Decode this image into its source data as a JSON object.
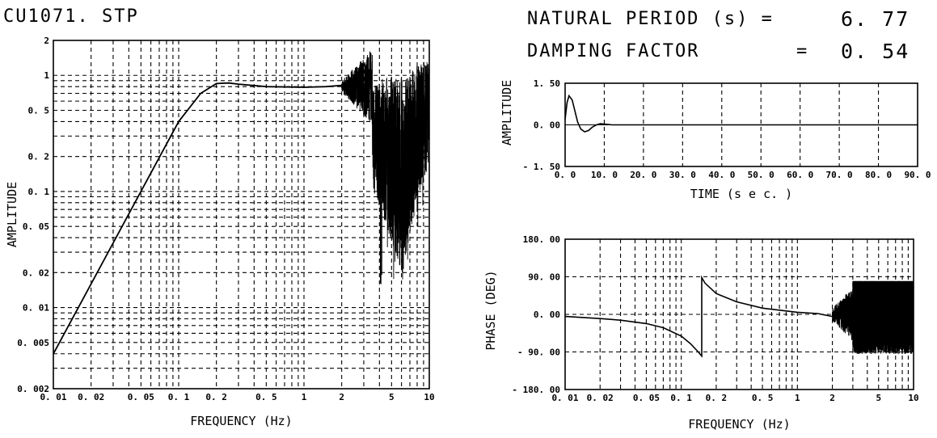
{
  "filename": "CU1071. STP",
  "header": {
    "natural_period_label": "NATURAL  PERIOD (s) =",
    "natural_period_value": "6. 77",
    "damping_label": "DAMPING  FACTOR",
    "damping_eq": "=",
    "damping_value": "0. 54"
  },
  "chart_data": [
    {
      "type": "line",
      "id": "amplitude-spectrum",
      "xlabel": "FREQUENCY (Hz)",
      "ylabel": "AMPLITUDE",
      "xscale": "log",
      "yscale": "log",
      "xlim": [
        0.01,
        10
      ],
      "ylim": [
        0.002,
        2
      ],
      "x_ticks": [
        0.01,
        0.02,
        0.05,
        0.1,
        0.2,
        0.5,
        1,
        2,
        5,
        10
      ],
      "x_tick_labels": [
        "0. 01",
        "0. 02",
        "0. 05",
        "0. 1",
        "0. 2",
        "0. 5",
        "1",
        "2",
        "5",
        "10"
      ],
      "y_ticks": [
        2,
        1,
        0.5,
        0.2,
        0.1,
        0.05,
        0.02,
        0.01,
        0.005,
        0.002
      ],
      "y_tick_labels": [
        "2",
        "1",
        "0. 5",
        "0. 2",
        "0. 1",
        "0. 05",
        "0. 02",
        "0. 01",
        "0. 005",
        "0. 002"
      ],
      "grid": true,
      "series": [
        {
          "x": [
            0.01,
            0.02,
            0.05,
            0.1,
            0.15,
            0.2,
            0.25,
            0.3,
            0.5,
            1,
            1.5,
            2
          ],
          "y": [
            0.004,
            0.016,
            0.1,
            0.4,
            0.7,
            0.85,
            0.86,
            0.84,
            0.8,
            0.79,
            0.8,
            0.82
          ]
        }
      ],
      "noise_region": {
        "x": [
          2,
          10
        ],
        "y_range": [
          0.004,
          2
        ]
      }
    },
    {
      "type": "line",
      "id": "impulse-response",
      "xlabel": "TIME (s e c. )",
      "ylabel": "AMPLITUDE",
      "xlim": [
        0,
        90
      ],
      "ylim": [
        -1.5,
        1.5
      ],
      "x_ticks": [
        0,
        10,
        20,
        30,
        40,
        50,
        60,
        70,
        80,
        90
      ],
      "x_tick_labels": [
        "0. 0",
        "10. 0",
        "20. 0",
        "30. 0",
        "40. 0",
        "50. 0",
        "60. 0",
        "70. 0",
        "80. 0",
        "90. 0"
      ],
      "y_ticks": [
        1.5,
        0,
        -1.5
      ],
      "y_tick_labels": [
        "1. 50",
        "0. 00",
        "- 1. 50"
      ],
      "grid": true,
      "series": [
        {
          "x": [
            0,
            0.5,
            1,
            1.8,
            2.5,
            3.2,
            4,
            5,
            6,
            7,
            8,
            9,
            10,
            12,
            15,
            90
          ],
          "y": [
            0.2,
            0.8,
            1.05,
            0.9,
            0.5,
            0.1,
            -0.15,
            -0.25,
            -0.2,
            -0.08,
            0.0,
            0.04,
            0.03,
            0.0,
            0.0,
            0.0
          ]
        }
      ]
    },
    {
      "type": "line",
      "id": "phase-spectrum",
      "xlabel": "FREQUENCY (Hz)",
      "ylabel": "PHASE (DEG)",
      "xscale": "log",
      "xlim": [
        0.01,
        10
      ],
      "ylim": [
        -180,
        180
      ],
      "x_ticks": [
        0.01,
        0.02,
        0.05,
        0.1,
        0.2,
        0.5,
        1,
        2,
        5,
        10
      ],
      "x_tick_labels": [
        "0. 01",
        "0. 02",
        "0. 05",
        "0. 1",
        "0. 2",
        "0. 5",
        "1",
        "2",
        "5",
        "10"
      ],
      "y_ticks": [
        180,
        90,
        0,
        -90,
        -180
      ],
      "y_tick_labels": [
        "180. 00",
        "90. 00",
        "0. 00",
        "- 90. 00",
        "- 180. 00"
      ],
      "grid": true,
      "series": [
        {
          "x": [
            0.01,
            0.02,
            0.03,
            0.05,
            0.07,
            0.1,
            0.12,
            0.14,
            0.15,
            0.15,
            0.16,
            0.2,
            0.3,
            0.5,
            1,
            1.5,
            2
          ],
          "y": [
            -5,
            -10,
            -14,
            -22,
            -32,
            -52,
            -70,
            -90,
            -100,
            88,
            75,
            50,
            30,
            15,
            5,
            2,
            -5
          ]
        }
      ],
      "noise_region": {
        "x": [
          2,
          10
        ],
        "y_range": [
          -100,
          80
        ]
      }
    }
  ]
}
